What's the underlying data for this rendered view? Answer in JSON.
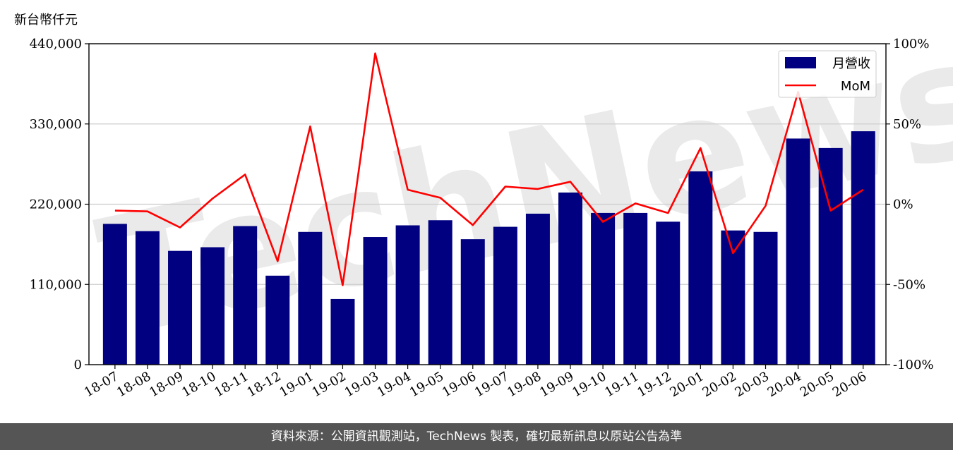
{
  "unit_label": "新台幣仟元",
  "watermark": "TechNews",
  "footer_text": "資料來源：公開資訊觀測站，TechNews 製表，確切最新訊息以原站公告為準",
  "colors": {
    "bar": "#000080",
    "line": "#ff0000",
    "grid": "#cccccc",
    "footer_bg": "#555555",
    "watermark_left": "#e6e6e6",
    "watermark_right": "#fbe3e3"
  },
  "chart_data": {
    "type": "bar",
    "categories": [
      "18-07",
      "18-08",
      "18-09",
      "18-10",
      "18-11",
      "18-12",
      "19-01",
      "19-02",
      "19-03",
      "19-04",
      "19-05",
      "19-06",
      "19-07",
      "19-08",
      "19-09",
      "19-10",
      "19-11",
      "19-12",
      "20-01",
      "20-02",
      "20-03",
      "20-04",
      "20-05",
      "20-06"
    ],
    "series": [
      {
        "name": "月營收",
        "type": "bar",
        "axis": "left",
        "values": [
          193000,
          183000,
          156000,
          161000,
          190000,
          122000,
          182000,
          90000,
          175000,
          191000,
          198000,
          172000,
          189000,
          207000,
          236000,
          208000,
          208000,
          196000,
          265000,
          184000,
          182000,
          310000,
          297000,
          320000
        ]
      },
      {
        "name": "MoM",
        "type": "line",
        "axis": "right",
        "values": [
          -4,
          -4.5,
          -14.5,
          3.5,
          18.5,
          -35.5,
          48.5,
          -50.5,
          94,
          9,
          4,
          -13,
          11,
          9.5,
          14,
          -11,
          0.5,
          -5.5,
          35,
          -30.5,
          -1,
          70,
          -4,
          9
        ]
      }
    ],
    "y_left": {
      "ylim": [
        0,
        440000
      ],
      "ticks": [
        0,
        110000,
        220000,
        330000,
        440000
      ],
      "tick_labels": [
        "0",
        "110,000",
        "220,000",
        "330,000",
        "440,000"
      ]
    },
    "y_right": {
      "ylim": [
        -100,
        100
      ],
      "ticks": [
        -100,
        -50,
        0,
        50,
        100
      ],
      "tick_labels": [
        "-100%",
        "-50%",
        "0%",
        "50%",
        "100%"
      ]
    },
    "xlabel": "",
    "ylabel": "",
    "grid": "horizontal",
    "legend": {
      "position": "top-right",
      "entries": [
        "月營收",
        "MoM"
      ]
    }
  }
}
